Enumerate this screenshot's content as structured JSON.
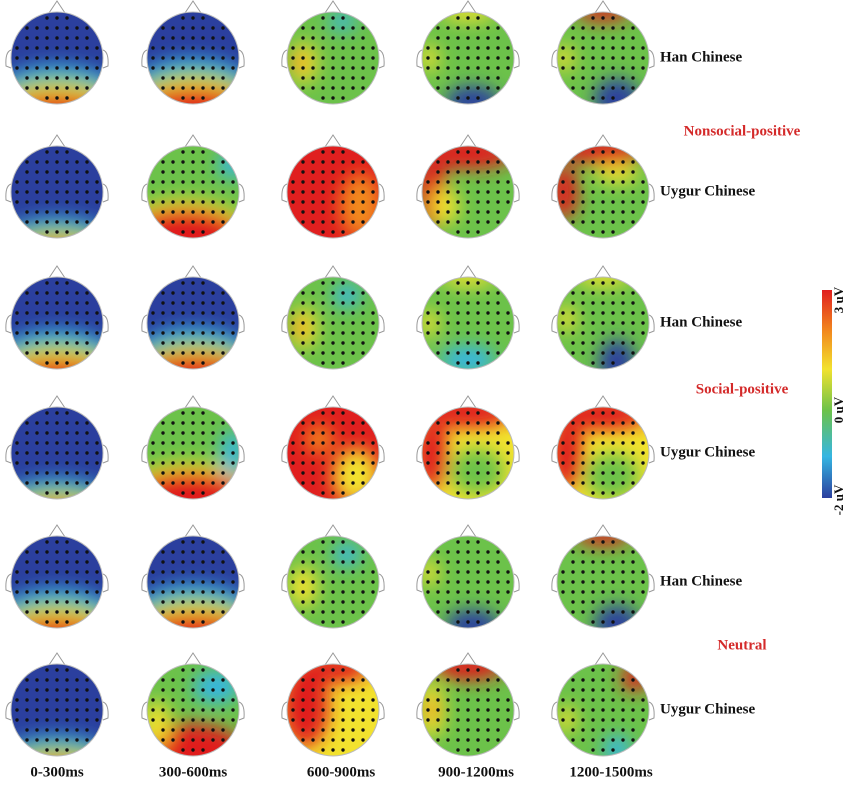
{
  "columns": [
    "0-300ms",
    "300-600ms",
    "600-900ms",
    "900-1200ms",
    "1200-1500ms"
  ],
  "groups": [
    {
      "label": "Nonsocial-positive",
      "rows": [
        "Han Chinese",
        "Uygur Chinese"
      ]
    },
    {
      "label": "Social-positive",
      "rows": [
        "Han Chinese",
        "Uygur Chinese"
      ]
    },
    {
      "label": "Neutral",
      "rows": [
        "Han Chinese",
        "Uygur Chinese"
      ]
    }
  ],
  "colorbar": {
    "labels": [
      "3 uV",
      "0 uV",
      "-2 uV"
    ]
  }
}
